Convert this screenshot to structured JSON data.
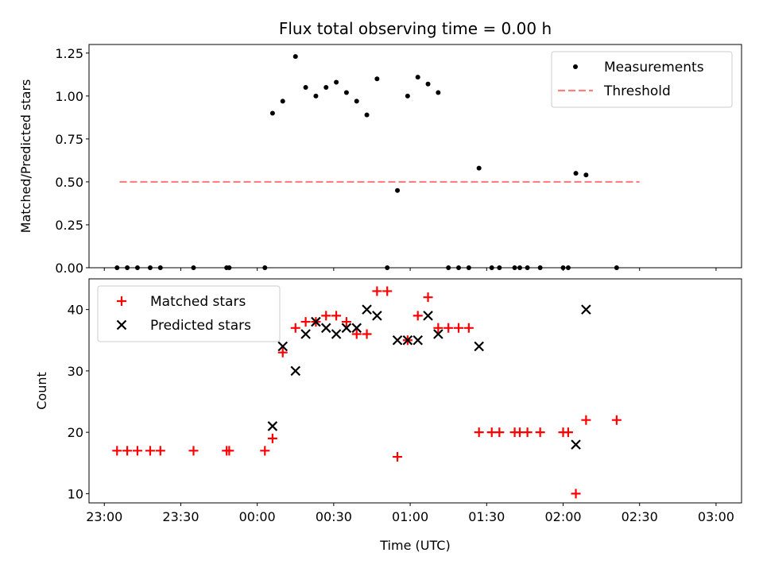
{
  "chart_data": [
    {
      "type": "scatter",
      "title": "Flux total observing time = 0.00 h",
      "xlabel": "",
      "ylabel": "Matched/Predicted stars",
      "xlim": [
        "23:00",
        "03:00"
      ],
      "ylim": [
        0,
        1.3
      ],
      "yticks": [
        "0.00",
        "0.25",
        "0.50",
        "0.75",
        "1.00",
        "1.25"
      ],
      "legend_position": "top-right",
      "series": [
        {
          "name": "Measurements",
          "color": "#000000",
          "marker": "dot",
          "points": [
            [
              "23:05",
              0
            ],
            [
              "23:09",
              0
            ],
            [
              "23:13",
              0
            ],
            [
              "23:18",
              0
            ],
            [
              "23:22",
              0
            ],
            [
              "23:35",
              0
            ],
            [
              "23:48",
              0
            ],
            [
              "23:49",
              0
            ],
            [
              "00:03",
              0
            ],
            [
              "00:06",
              0.9
            ],
            [
              "00:10",
              0.97
            ],
            [
              "00:15",
              1.23
            ],
            [
              "00:19",
              1.05
            ],
            [
              "00:23",
              1.0
            ],
            [
              "00:27",
              1.05
            ],
            [
              "00:31",
              1.08
            ],
            [
              "00:35",
              1.02
            ],
            [
              "00:39",
              0.97
            ],
            [
              "00:43",
              0.89
            ],
            [
              "00:47",
              1.1
            ],
            [
              "00:51",
              0
            ],
            [
              "00:55",
              0.45
            ],
            [
              "00:59",
              1.0
            ],
            [
              "01:03",
              1.11
            ],
            [
              "01:07",
              1.07
            ],
            [
              "01:11",
              1.02
            ],
            [
              "01:15",
              0
            ],
            [
              "01:19",
              0
            ],
            [
              "01:23",
              0
            ],
            [
              "01:27",
              0.58
            ],
            [
              "01:32",
              0
            ],
            [
              "01:35",
              0
            ],
            [
              "01:41",
              0
            ],
            [
              "01:43",
              0
            ],
            [
              "01:46",
              0
            ],
            [
              "01:51",
              0
            ],
            [
              "02:00",
              0
            ],
            [
              "02:02",
              0
            ],
            [
              "02:05",
              0.55
            ],
            [
              "02:09",
              0.54
            ],
            [
              "02:21",
              0
            ]
          ]
        },
        {
          "name": "Threshold",
          "color": "#ff7f7f",
          "style": "dashed",
          "points": [
            [
              "23:06",
              0.5
            ],
            [
              "02:30",
              0.5
            ]
          ]
        }
      ]
    },
    {
      "type": "scatter",
      "title": "",
      "xlabel": "Time (UTC)",
      "ylabel": "Count",
      "xlim": [
        "23:00",
        "03:00"
      ],
      "ylim": [
        8.5,
        45
      ],
      "yticks": [
        "10",
        "20",
        "30",
        "40"
      ],
      "xticks": [
        "23:00",
        "23:30",
        "00:00",
        "00:30",
        "01:00",
        "01:30",
        "02:00",
        "02:30",
        "03:00"
      ],
      "legend_position": "top-left",
      "series": [
        {
          "name": "Matched stars",
          "color": "#ff0000",
          "marker": "plus",
          "points": [
            [
              "23:05",
              17
            ],
            [
              "23:09",
              17
            ],
            [
              "23:13",
              17
            ],
            [
              "23:18",
              17
            ],
            [
              "23:22",
              17
            ],
            [
              "23:35",
              17
            ],
            [
              "23:48",
              17
            ],
            [
              "23:49",
              17
            ],
            [
              "00:03",
              17
            ],
            [
              "00:06",
              19
            ],
            [
              "00:10",
              33
            ],
            [
              "00:15",
              37
            ],
            [
              "00:19",
              38
            ],
            [
              "00:23",
              38
            ],
            [
              "00:27",
              39
            ],
            [
              "00:31",
              39
            ],
            [
              "00:35",
              38
            ],
            [
              "00:39",
              36
            ],
            [
              "00:43",
              36
            ],
            [
              "00:47",
              43
            ],
            [
              "00:51",
              43
            ],
            [
              "00:55",
              16
            ],
            [
              "00:59",
              35
            ],
            [
              "01:03",
              39
            ],
            [
              "01:07",
              42
            ],
            [
              "01:11",
              37
            ],
            [
              "01:15",
              37
            ],
            [
              "01:19",
              37
            ],
            [
              "01:23",
              37
            ],
            [
              "01:27",
              20
            ],
            [
              "01:32",
              20
            ],
            [
              "01:35",
              20
            ],
            [
              "01:41",
              20
            ],
            [
              "01:43",
              20
            ],
            [
              "01:46",
              20
            ],
            [
              "01:51",
              20
            ],
            [
              "02:00",
              20
            ],
            [
              "02:02",
              20
            ],
            [
              "02:05",
              10
            ],
            [
              "02:09",
              22
            ],
            [
              "02:21",
              22
            ]
          ]
        },
        {
          "name": "Predicted stars",
          "color": "#000000",
          "marker": "x",
          "points": [
            [
              "00:06",
              21
            ],
            [
              "00:10",
              34
            ],
            [
              "00:15",
              30
            ],
            [
              "00:19",
              36
            ],
            [
              "00:23",
              38
            ],
            [
              "00:27",
              37
            ],
            [
              "00:31",
              36
            ],
            [
              "00:35",
              37
            ],
            [
              "00:39",
              37
            ],
            [
              "00:43",
              40
            ],
            [
              "00:47",
              39
            ],
            [
              "00:55",
              35
            ],
            [
              "00:59",
              35
            ],
            [
              "01:03",
              35
            ],
            [
              "01:07",
              39
            ],
            [
              "01:11",
              36
            ],
            [
              "01:27",
              34
            ],
            [
              "02:05",
              18
            ],
            [
              "02:09",
              40
            ]
          ]
        }
      ]
    }
  ]
}
